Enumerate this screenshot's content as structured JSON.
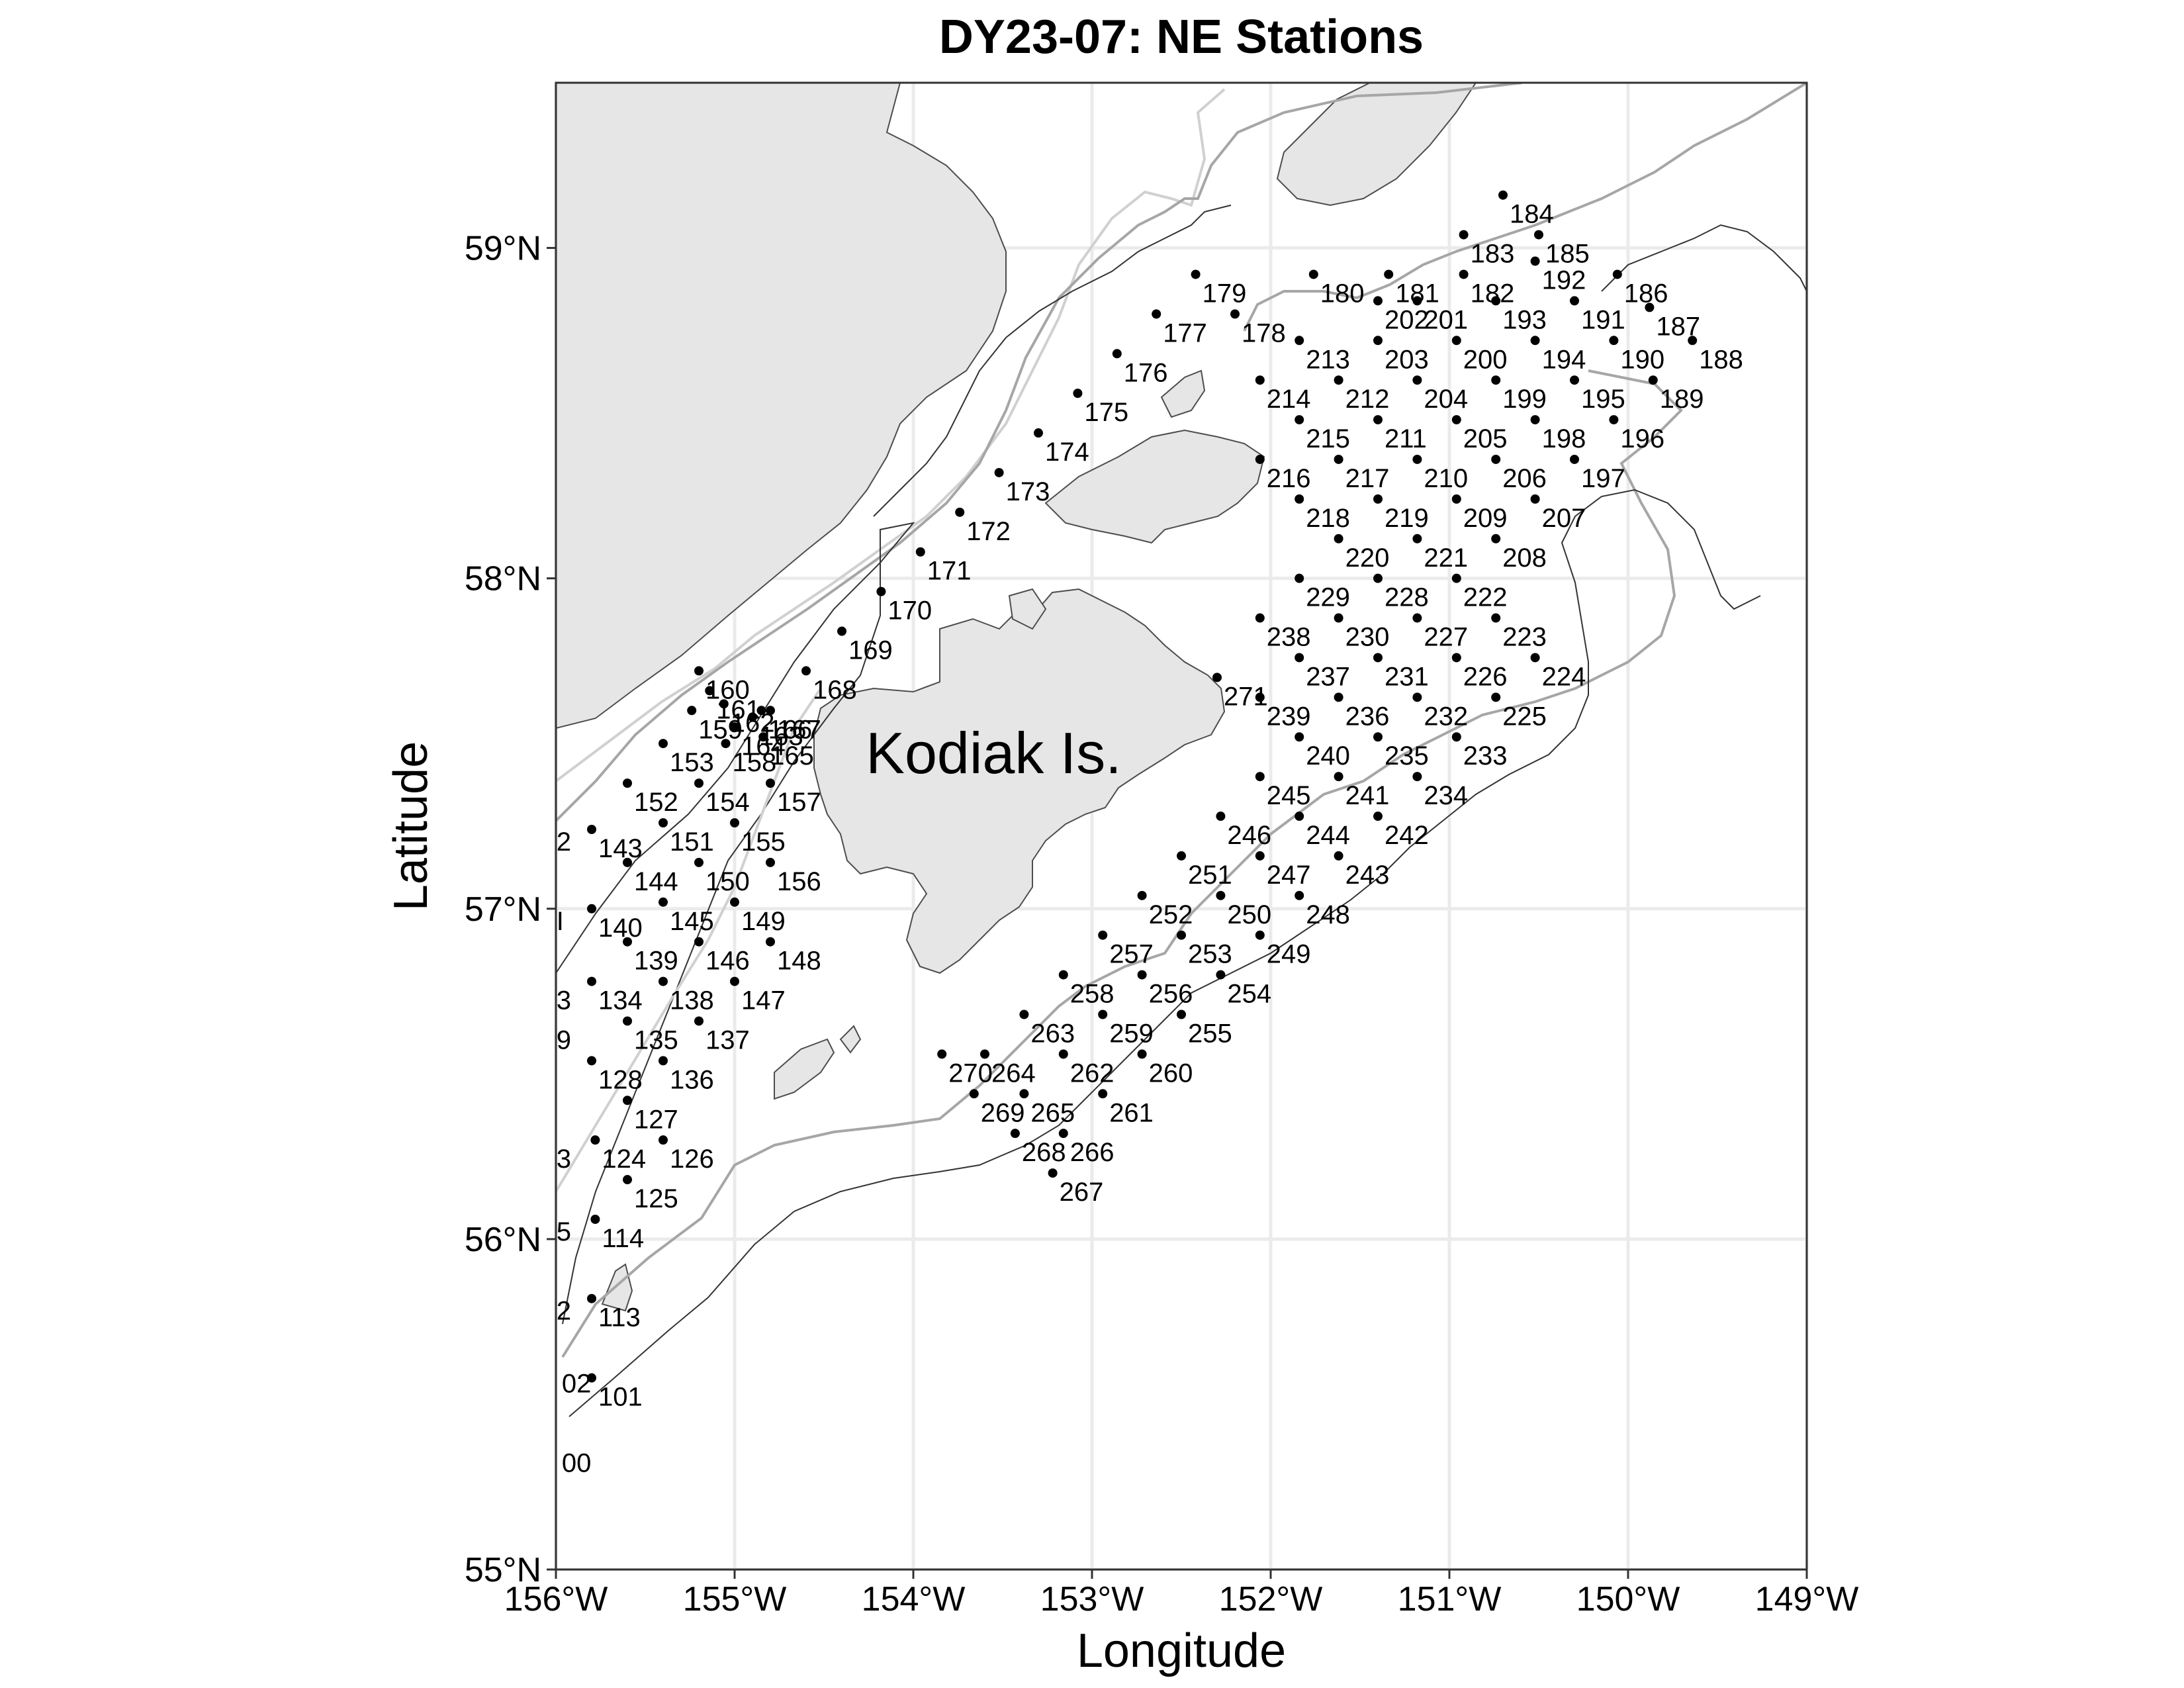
{
  "chart_data": {
    "type": "scatter",
    "title": "DY23-07: NE Stations",
    "xlabel": "Longitude",
    "ylabel": "Latitude",
    "xlim": [
      -156,
      -149
    ],
    "ylim": [
      55,
      59.5
    ],
    "x_ticks": [
      {
        "value": -156,
        "label": "156°W"
      },
      {
        "value": -155,
        "label": "155°W"
      },
      {
        "value": -154,
        "label": "154°W"
      },
      {
        "value": -153,
        "label": "153°W"
      },
      {
        "value": -152,
        "label": "152°W"
      },
      {
        "value": -151,
        "label": "151°W"
      },
      {
        "value": -150,
        "label": "150°W"
      },
      {
        "value": -149,
        "label": "149°W"
      }
    ],
    "y_ticks": [
      {
        "value": 55,
        "label": "55°N"
      },
      {
        "value": 56,
        "label": "56°N"
      },
      {
        "value": 57,
        "label": "57°N"
      },
      {
        "value": 58,
        "label": "58°N"
      },
      {
        "value": 59,
        "label": "59°N"
      }
    ],
    "grid": true,
    "point_color": "#000000",
    "land_color": "#e6e6e6",
    "annotation": {
      "text": "Kodiak Is.",
      "x": -153.55,
      "y": 57.47
    },
    "stations": [
      {
        "id": "101",
        "x": -155.8,
        "y": 55.58
      },
      {
        "id": "113",
        "x": -155.8,
        "y": 55.82
      },
      {
        "id": "114",
        "x": -155.78,
        "y": 56.06
      },
      {
        "id": "125",
        "x": -155.6,
        "y": 56.18
      },
      {
        "id": "124",
        "x": -155.78,
        "y": 56.3
      },
      {
        "id": "126",
        "x": -155.4,
        "y": 56.3
      },
      {
        "id": "127",
        "x": -155.6,
        "y": 56.42
      },
      {
        "id": "128",
        "x": -155.8,
        "y": 56.54
      },
      {
        "id": "136",
        "x": -155.4,
        "y": 56.54
      },
      {
        "id": "135",
        "x": -155.6,
        "y": 56.66
      },
      {
        "id": "137",
        "x": -155.2,
        "y": 56.66
      },
      {
        "id": "134",
        "x": -155.8,
        "y": 56.78
      },
      {
        "id": "138",
        "x": -155.4,
        "y": 56.78
      },
      {
        "id": "147",
        "x": -155.0,
        "y": 56.78
      },
      {
        "id": "139",
        "x": -155.6,
        "y": 56.9
      },
      {
        "id": "146",
        "x": -155.2,
        "y": 56.9
      },
      {
        "id": "148",
        "x": -154.8,
        "y": 56.9
      },
      {
        "id": "140",
        "x": -155.8,
        "y": 57.0
      },
      {
        "id": "145",
        "x": -155.4,
        "y": 57.02
      },
      {
        "id": "149",
        "x": -155.0,
        "y": 57.02
      },
      {
        "id": "144",
        "x": -155.6,
        "y": 57.14
      },
      {
        "id": "150",
        "x": -155.2,
        "y": 57.14
      },
      {
        "id": "156",
        "x": -154.8,
        "y": 57.14
      },
      {
        "id": "143",
        "x": -155.8,
        "y": 57.24
      },
      {
        "id": "151",
        "x": -155.4,
        "y": 57.26
      },
      {
        "id": "155",
        "x": -155.0,
        "y": 57.26
      },
      {
        "id": "152",
        "x": -155.6,
        "y": 57.38
      },
      {
        "id": "154",
        "x": -155.2,
        "y": 57.38
      },
      {
        "id": "157",
        "x": -154.8,
        "y": 57.38
      },
      {
        "id": "153",
        "x": -155.4,
        "y": 57.5
      },
      {
        "id": "158",
        "x": -155.05,
        "y": 57.5
      },
      {
        "id": "165",
        "x": -154.84,
        "y": 57.52
      },
      {
        "id": "159",
        "x": -155.24,
        "y": 57.6
      },
      {
        "id": "164",
        "x": -155.0,
        "y": 57.55
      },
      {
        "id": "163",
        "x": -154.9,
        "y": 57.58
      },
      {
        "id": "166",
        "x": -154.85,
        "y": 57.6
      },
      {
        "id": "162",
        "x": -155.06,
        "y": 57.62
      },
      {
        "id": "161",
        "x": -155.14,
        "y": 57.66
      },
      {
        "id": "160",
        "x": -155.2,
        "y": 57.72
      },
      {
        "id": "167",
        "x": -154.8,
        "y": 57.6
      },
      {
        "id": "168",
        "x": -154.6,
        "y": 57.72
      },
      {
        "id": "169",
        "x": -154.4,
        "y": 57.84
      },
      {
        "id": "170",
        "x": -154.18,
        "y": 57.96
      },
      {
        "id": "171",
        "x": -153.96,
        "y": 58.08
      },
      {
        "id": "172",
        "x": -153.74,
        "y": 58.2
      },
      {
        "id": "173",
        "x": -153.52,
        "y": 58.32
      },
      {
        "id": "174",
        "x": -153.3,
        "y": 58.44
      },
      {
        "id": "175",
        "x": -153.08,
        "y": 58.56
      },
      {
        "id": "176",
        "x": -152.86,
        "y": 58.68
      },
      {
        "id": "177",
        "x": -152.64,
        "y": 58.8
      },
      {
        "id": "178",
        "x": -152.2,
        "y": 58.8
      },
      {
        "id": "179",
        "x": -152.42,
        "y": 58.92
      },
      {
        "id": "180",
        "x": -151.76,
        "y": 58.92
      },
      {
        "id": "181",
        "x": -151.34,
        "y": 58.92
      },
      {
        "id": "182",
        "x": -150.92,
        "y": 58.92
      },
      {
        "id": "183",
        "x": -150.92,
        "y": 59.04
      },
      {
        "id": "184",
        "x": -150.7,
        "y": 59.16
      },
      {
        "id": "185",
        "x": -150.5,
        "y": 59.04
      },
      {
        "id": "186",
        "x": -150.06,
        "y": 58.92
      },
      {
        "id": "187",
        "x": -149.88,
        "y": 58.82
      },
      {
        "id": "188",
        "x": -149.64,
        "y": 58.72
      },
      {
        "id": "189",
        "x": -149.86,
        "y": 58.6
      },
      {
        "id": "190",
        "x": -150.08,
        "y": 58.72
      },
      {
        "id": "191",
        "x": -150.3,
        "y": 58.84
      },
      {
        "id": "192",
        "x": -150.52,
        "y": 58.96
      },
      {
        "id": "193",
        "x": -150.74,
        "y": 58.84
      },
      {
        "id": "194",
        "x": -150.52,
        "y": 58.72
      },
      {
        "id": "195",
        "x": -150.3,
        "y": 58.6
      },
      {
        "id": "196",
        "x": -150.08,
        "y": 58.48
      },
      {
        "id": "197",
        "x": -150.3,
        "y": 58.36
      },
      {
        "id": "198",
        "x": -150.52,
        "y": 58.48
      },
      {
        "id": "199",
        "x": -150.74,
        "y": 58.6
      },
      {
        "id": "200",
        "x": -150.96,
        "y": 58.72
      },
      {
        "id": "201",
        "x": -151.18,
        "y": 58.84
      },
      {
        "id": "202",
        "x": -151.4,
        "y": 58.84
      },
      {
        "id": "203",
        "x": -151.4,
        "y": 58.72
      },
      {
        "id": "204",
        "x": -151.18,
        "y": 58.6
      },
      {
        "id": "205",
        "x": -150.96,
        "y": 58.48
      },
      {
        "id": "206",
        "x": -150.74,
        "y": 58.36
      },
      {
        "id": "207",
        "x": -150.52,
        "y": 58.24
      },
      {
        "id": "208",
        "x": -150.74,
        "y": 58.12
      },
      {
        "id": "209",
        "x": -150.96,
        "y": 58.24
      },
      {
        "id": "210",
        "x": -151.18,
        "y": 58.36
      },
      {
        "id": "211",
        "x": -151.4,
        "y": 58.48
      },
      {
        "id": "212",
        "x": -151.62,
        "y": 58.6
      },
      {
        "id": "213",
        "x": -151.84,
        "y": 58.72
      },
      {
        "id": "214",
        "x": -152.06,
        "y": 58.6
      },
      {
        "id": "215",
        "x": -151.84,
        "y": 58.48
      },
      {
        "id": "216",
        "x": -152.06,
        "y": 58.36
      },
      {
        "id": "217",
        "x": -151.62,
        "y": 58.36
      },
      {
        "id": "218",
        "x": -151.84,
        "y": 58.24
      },
      {
        "id": "219",
        "x": -151.4,
        "y": 58.24
      },
      {
        "id": "220",
        "x": -151.62,
        "y": 58.12
      },
      {
        "id": "221",
        "x": -151.18,
        "y": 58.12
      },
      {
        "id": "222",
        "x": -150.96,
        "y": 58.0
      },
      {
        "id": "223",
        "x": -150.74,
        "y": 57.88
      },
      {
        "id": "224",
        "x": -150.52,
        "y": 57.76
      },
      {
        "id": "225",
        "x": -150.74,
        "y": 57.64
      },
      {
        "id": "226",
        "x": -150.96,
        "y": 57.76
      },
      {
        "id": "227",
        "x": -151.18,
        "y": 57.88
      },
      {
        "id": "228",
        "x": -151.4,
        "y": 58.0
      },
      {
        "id": "229",
        "x": -151.84,
        "y": 58.0
      },
      {
        "id": "230",
        "x": -151.62,
        "y": 57.88
      },
      {
        "id": "231",
        "x": -151.4,
        "y": 57.76
      },
      {
        "id": "232",
        "x": -151.18,
        "y": 57.64
      },
      {
        "id": "233",
        "x": -150.96,
        "y": 57.52
      },
      {
        "id": "234",
        "x": -151.18,
        "y": 57.4
      },
      {
        "id": "235",
        "x": -151.4,
        "y": 57.52
      },
      {
        "id": "236",
        "x": -151.62,
        "y": 57.64
      },
      {
        "id": "237",
        "x": -151.84,
        "y": 57.76
      },
      {
        "id": "238",
        "x": -152.06,
        "y": 57.88
      },
      {
        "id": "239",
        "x": -152.06,
        "y": 57.64
      },
      {
        "id": "240",
        "x": -151.84,
        "y": 57.52
      },
      {
        "id": "241",
        "x": -151.62,
        "y": 57.4
      },
      {
        "id": "242",
        "x": -151.4,
        "y": 57.28
      },
      {
        "id": "243",
        "x": -151.62,
        "y": 57.16
      },
      {
        "id": "244",
        "x": -151.84,
        "y": 57.28
      },
      {
        "id": "245",
        "x": -152.06,
        "y": 57.4
      },
      {
        "id": "246",
        "x": -152.28,
        "y": 57.28
      },
      {
        "id": "247",
        "x": -152.06,
        "y": 57.16
      },
      {
        "id": "248",
        "x": -151.84,
        "y": 57.04
      },
      {
        "id": "249",
        "x": -152.06,
        "y": 56.92
      },
      {
        "id": "250",
        "x": -152.28,
        "y": 57.04
      },
      {
        "id": "251",
        "x": -152.5,
        "y": 57.16
      },
      {
        "id": "252",
        "x": -152.72,
        "y": 57.04
      },
      {
        "id": "253",
        "x": -152.5,
        "y": 56.92
      },
      {
        "id": "254",
        "x": -152.28,
        "y": 56.8
      },
      {
        "id": "255",
        "x": -152.5,
        "y": 56.68
      },
      {
        "id": "256",
        "x": -152.72,
        "y": 56.8
      },
      {
        "id": "257",
        "x": -152.94,
        "y": 56.92
      },
      {
        "id": "258",
        "x": -153.16,
        "y": 56.8
      },
      {
        "id": "259",
        "x": -152.94,
        "y": 56.68
      },
      {
        "id": "260",
        "x": -152.72,
        "y": 56.56
      },
      {
        "id": "261",
        "x": -152.94,
        "y": 56.44
      },
      {
        "id": "262",
        "x": -153.16,
        "y": 56.56
      },
      {
        "id": "263",
        "x": -153.38,
        "y": 56.68
      },
      {
        "id": "264",
        "x": -153.6,
        "y": 56.56
      },
      {
        "id": "265",
        "x": -153.38,
        "y": 56.44
      },
      {
        "id": "266",
        "x": -153.16,
        "y": 56.32
      },
      {
        "id": "267",
        "x": -153.22,
        "y": 56.2
      },
      {
        "id": "268",
        "x": -153.43,
        "y": 56.32
      },
      {
        "id": "269",
        "x": -153.66,
        "y": 56.44
      },
      {
        "id": "270",
        "x": -153.84,
        "y": 56.56
      },
      {
        "id": "271",
        "x": -152.3,
        "y": 57.7
      }
    ],
    "cut_labels": [
      {
        "text": "2",
        "x": -155.96,
        "y": 57.26
      },
      {
        "text": "I",
        "x": -155.96,
        "y": 57.02
      },
      {
        "text": "3",
        "x": -155.96,
        "y": 56.78
      },
      {
        "text": "9",
        "x": -155.96,
        "y": 56.66
      },
      {
        "text": "3",
        "x": -155.96,
        "y": 56.3
      },
      {
        "text": "5",
        "x": -155.96,
        "y": 56.08
      },
      {
        "text": "2",
        "x": -155.96,
        "y": 55.84
      },
      {
        "text": "02",
        "x": -155.93,
        "y": 55.62
      },
      {
        "text": "00",
        "x": -155.93,
        "y": 55.38
      }
    ]
  }
}
